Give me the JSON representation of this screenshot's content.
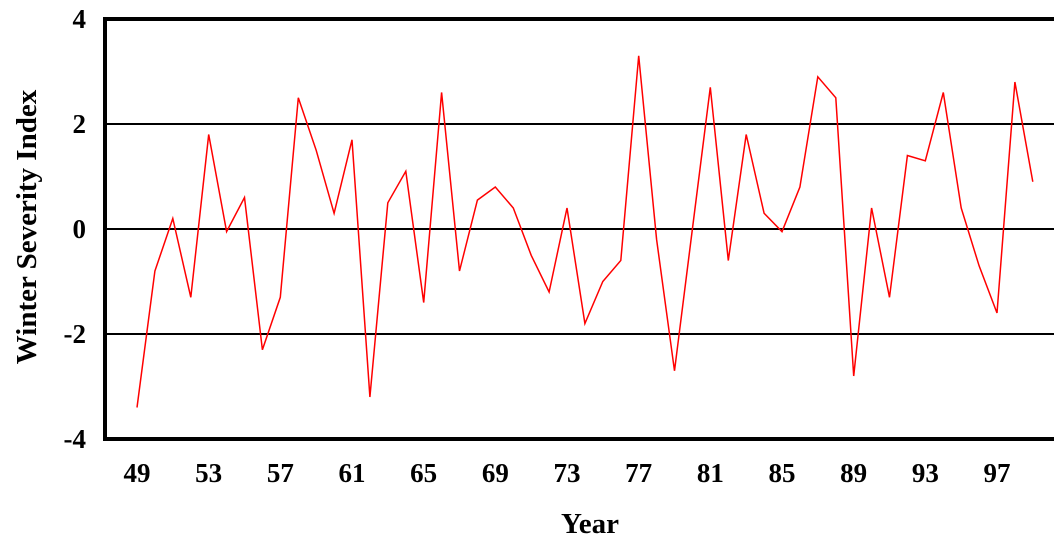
{
  "chart_data": {
    "type": "line",
    "xlabel": "Year",
    "ylabel": "Winter Severity Index",
    "xlim": [
      1949,
      1999
    ],
    "ylim": [
      -4,
      4
    ],
    "x_ticks": [
      1949,
      1953,
      1957,
      1961,
      1965,
      1969,
      1973,
      1977,
      1981,
      1985,
      1989,
      1993,
      1997
    ],
    "x_tick_labels": [
      "49",
      "53",
      "57",
      "61",
      "65",
      "69",
      "73",
      "77",
      "81",
      "85",
      "89",
      "93",
      "97"
    ],
    "y_ticks": [
      -4,
      -2,
      0,
      2,
      4
    ],
    "y_tick_labels": [
      "-4",
      "-2",
      "0",
      "2",
      "4"
    ],
    "grid": "horizontal",
    "line_color": "#ff0000",
    "x": [
      1949,
      1950,
      1951,
      1952,
      1953,
      1954,
      1955,
      1956,
      1957,
      1958,
      1959,
      1960,
      1961,
      1962,
      1963,
      1964,
      1965,
      1966,
      1967,
      1968,
      1969,
      1970,
      1971,
      1972,
      1973,
      1974,
      1975,
      1976,
      1977,
      1978,
      1979,
      1980,
      1981,
      1982,
      1983,
      1984,
      1985,
      1986,
      1987,
      1988,
      1989,
      1990,
      1991,
      1992,
      1993,
      1994,
      1995,
      1996,
      1997,
      1998,
      1999
    ],
    "values": [
      -3.4,
      -0.8,
      0.2,
      -1.3,
      1.8,
      -0.05,
      0.6,
      -2.3,
      -1.3,
      2.5,
      1.5,
      0.3,
      1.7,
      -3.2,
      0.5,
      1.1,
      -1.4,
      2.6,
      -0.8,
      0.55,
      0.8,
      0.4,
      -0.5,
      -1.2,
      0.4,
      -1.8,
      -1.0,
      -0.6,
      3.3,
      -0.2,
      -2.7,
      0.0,
      2.7,
      -0.6,
      1.8,
      0.3,
      -0.05,
      0.8,
      2.9,
      2.5,
      -2.8,
      0.4,
      -1.3,
      1.4,
      1.3,
      2.6,
      0.4,
      -0.7,
      -1.6,
      2.8,
      0.9
    ]
  }
}
